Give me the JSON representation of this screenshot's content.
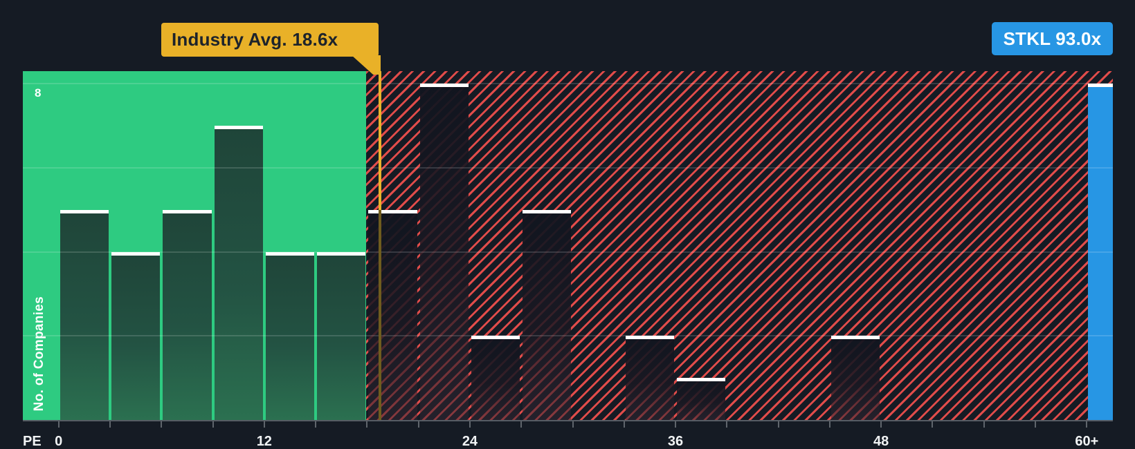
{
  "annotations": {
    "industry_avg_label": "Industry Avg. 18.6x",
    "ticker_label": "STKL 93.0x"
  },
  "axis": {
    "x_title": "PE",
    "y_title": "No. of Companies",
    "y_max_label": "8"
  },
  "colors": {
    "background": "#151b24",
    "below_avg_zone_green": "#2ecb81",
    "bar_green_top": "#1f4539",
    "bar_green_bottom": "#2b7050",
    "hatch_red": "#ec4f4c",
    "ticker_blue": "#2796e4",
    "industry_yellow": "#e9b128",
    "bar_cap_white": "#ffffff"
  },
  "chart_data": {
    "type": "bar",
    "subtype": "histogram",
    "xlabel": "PE",
    "ylabel": "No. of Companies",
    "industry_avg": 18.6,
    "ticker": "STKL",
    "ticker_pe": 93.0,
    "bin_width": 3,
    "ylim": [
      0,
      8.3
    ],
    "y_gridlines": [
      2,
      4,
      6,
      8
    ],
    "grid": true,
    "legend_position": "none",
    "x_tick_step": 3,
    "x_tick_max": 60,
    "x_tick_labels": [
      {
        "value": 0,
        "label": "0"
      },
      {
        "value": 12,
        "label": "12"
      },
      {
        "value": 24,
        "label": "24"
      },
      {
        "value": 36,
        "label": "36"
      },
      {
        "value": 48,
        "label": "48"
      },
      {
        "value": 60,
        "label": "60+"
      }
    ],
    "bins": [
      {
        "from": 0,
        "to": 3,
        "count": 5,
        "zone": "below_avg"
      },
      {
        "from": 3,
        "to": 6,
        "count": 4,
        "zone": "below_avg"
      },
      {
        "from": 6,
        "to": 9,
        "count": 5,
        "zone": "below_avg"
      },
      {
        "from": 9,
        "to": 12,
        "count": 7,
        "zone": "below_avg"
      },
      {
        "from": 12,
        "to": 15,
        "count": 4,
        "zone": "below_avg"
      },
      {
        "from": 15,
        "to": 18,
        "count": 4,
        "zone": "below_avg"
      },
      {
        "from": 18,
        "to": 21,
        "count": 5,
        "zone": "above_avg"
      },
      {
        "from": 21,
        "to": 24,
        "count": 8,
        "zone": "above_avg"
      },
      {
        "from": 24,
        "to": 27,
        "count": 2,
        "zone": "above_avg"
      },
      {
        "from": 27,
        "to": 30,
        "count": 5,
        "zone": "above_avg"
      },
      {
        "from": 30,
        "to": 33,
        "count": 0,
        "zone": "above_avg"
      },
      {
        "from": 33,
        "to": 36,
        "count": 2,
        "zone": "above_avg"
      },
      {
        "from": 36,
        "to": 39,
        "count": 1,
        "zone": "above_avg"
      },
      {
        "from": 39,
        "to": 42,
        "count": 0,
        "zone": "above_avg"
      },
      {
        "from": 42,
        "to": 45,
        "count": 0,
        "zone": "above_avg"
      },
      {
        "from": 45,
        "to": 48,
        "count": 2,
        "zone": "above_avg"
      },
      {
        "from": 48,
        "to": 51,
        "count": 0,
        "zone": "above_avg"
      },
      {
        "from": 51,
        "to": 54,
        "count": 0,
        "zone": "above_avg"
      },
      {
        "from": 54,
        "to": 57,
        "count": 0,
        "zone": "above_avg"
      },
      {
        "from": 57,
        "to": 60,
        "count": 0,
        "zone": "above_avg"
      },
      {
        "from": 60,
        "to": 63,
        "count": 8,
        "zone": "ticker",
        "label": "60+"
      }
    ]
  }
}
